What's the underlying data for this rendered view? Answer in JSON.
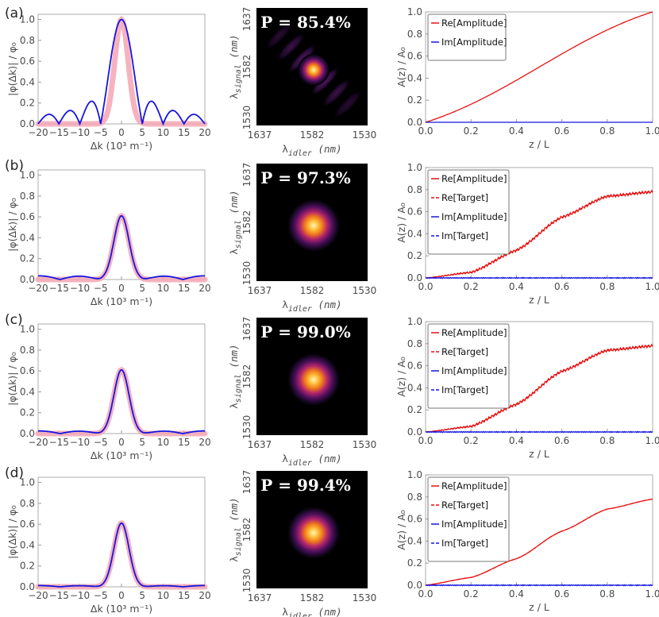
{
  "chart_data": [
    {
      "panel": "(a)",
      "label": "(a)",
      "type": "line",
      "xlabel": "Δk (10³ m⁻¹)",
      "ylabel": "|φ(Δk)| / φ₀",
      "xlim": [
        -20,
        20
      ],
      "ylim": [
        0,
        1.05
      ],
      "xticks": [
        -20,
        -15,
        -10,
        -5,
        0,
        5,
        10,
        15,
        20
      ],
      "xtick_labels": [
        "−20",
        "−15",
        "−10",
        "−5",
        "0",
        "5",
        "10",
        "15",
        "20"
      ],
      "yticks": [
        0.0,
        0.2,
        0.4,
        0.6,
        0.8,
        1.0
      ],
      "ytick_labels": [
        "0.0",
        "0.2",
        "0.4",
        "0.6",
        "0.8",
        "1.0"
      ],
      "series": [
        {
          "name": "target (pink band)",
          "color": "#f4a6b4",
          "values": "gaussian, peak 1.0, fwhm ≈ 3.8"
        },
        {
          "name": "phi",
          "color": "#1515e0",
          "values": "sinc, peak 1.0, zeros every 5, side lobes 0.22"
        }
      ],
      "jsa": {
        "purity_label": "P = 85.4%",
        "xlabel_main": "λ",
        "xlabel_sub": "idler",
        "xlabel_unit": " (nm)",
        "ylabel_main": "λ",
        "ylabel_sub": "signal",
        "ylabel_unit": " (nm)",
        "xtick_labels": [
          "1637",
          "1582",
          "1530"
        ],
        "ytick_labels": [
          "1637",
          "1582",
          "1530"
        ],
        "side_lobes": true
      },
      "amplitude": {
        "type": "line",
        "xlabel": "z / L",
        "ylabel": "A(z) / A₀",
        "xlim": [
          0,
          1
        ],
        "ylim": [
          0,
          1.0
        ],
        "xticks": [
          0.0,
          0.2,
          0.4,
          0.6,
          0.8,
          1.0
        ],
        "xtick_labels": [
          "0.0",
          "0.2",
          "0.4",
          "0.6",
          "0.8",
          "1.0"
        ],
        "yticks": [
          0.0,
          0.2,
          0.4,
          0.6,
          0.8,
          1.0
        ],
        "ytick_labels": [
          "0.0",
          "0.2",
          "0.4",
          "0.6",
          "0.8",
          "1.0"
        ],
        "legend": [
          "Re[Amplitude]",
          "Im[Amplitude]"
        ],
        "series": [
          {
            "name": "Re[Amplitude]",
            "color": "#e81010",
            "dash": false,
            "x": [
              0,
              1
            ],
            "y": [
              0,
              1.0
            ]
          },
          {
            "name": "Im[Amplitude]",
            "color": "#1515e0",
            "dash": false,
            "x": [
              0,
              1
            ],
            "y": [
              0,
              0
            ]
          }
        ]
      }
    },
    {
      "panel": "(b)",
      "label": "(b)",
      "type": "line",
      "xlabel": "Δk (10³ m⁻¹)",
      "ylabel": "|φ(Δk)| / φ₀",
      "xlim": [
        -20,
        20
      ],
      "ylim": [
        0,
        1.05
      ],
      "xticks": [
        -20,
        -15,
        -10,
        -5,
        0,
        5,
        10,
        15,
        20
      ],
      "xtick_labels": [
        "−20",
        "−15",
        "−10",
        "−5",
        "0",
        "5",
        "10",
        "15",
        "20"
      ],
      "yticks": [
        0.0,
        0.2,
        0.4,
        0.6,
        0.8,
        1.0
      ],
      "ytick_labels": [
        "0.0",
        "0.2",
        "0.4",
        "0.6",
        "0.8",
        "1.0"
      ],
      "series": [
        {
          "name": "target (pink band)",
          "color": "#f4a6b4",
          "values": "gaussian, peak 0.61"
        },
        {
          "name": "phi",
          "color": "#1515e0",
          "values": "gaussian, peak 0.61, ripple 0.035"
        }
      ],
      "jsa": {
        "purity_label": "P = 97.3%",
        "xlabel_main": "λ",
        "xlabel_sub": "idler",
        "xlabel_unit": " (nm)",
        "ylabel_main": "λ",
        "ylabel_sub": "signal",
        "ylabel_unit": " (nm)",
        "xtick_labels": [
          "1637",
          "1582",
          "1530"
        ],
        "ytick_labels": [
          "1637",
          "1582",
          "1530"
        ],
        "side_lobes": false
      },
      "amplitude": {
        "type": "line",
        "xlabel": "z / L",
        "ylabel": "A(z) / A₀",
        "xlim": [
          0,
          1
        ],
        "ylim": [
          0,
          1.0
        ],
        "xticks": [
          0.0,
          0.2,
          0.4,
          0.6,
          0.8,
          1.0
        ],
        "xtick_labels": [
          "0.0",
          "0.2",
          "0.4",
          "0.6",
          "0.8",
          "1.0"
        ],
        "yticks": [
          0.0,
          0.2,
          0.4,
          0.6,
          0.8,
          1.0
        ],
        "ytick_labels": [
          "0.0",
          "0.2",
          "0.4",
          "0.6",
          "0.8",
          "1.0"
        ],
        "legend": [
          "Re[Amplitude]",
          "Re[Target]",
          "Im[Amplitude]",
          "Im[Target]"
        ],
        "series": [
          {
            "name": "Re[Amplitude]",
            "color": "#e81010",
            "dash": false,
            "x": [
              0,
              0.2,
              0.4,
              0.6,
              0.8,
              1.0
            ],
            "y": [
              0,
              0.05,
              0.25,
              0.55,
              0.74,
              0.78
            ],
            "jagged": true
          },
          {
            "name": "Re[Target]",
            "color": "#e81010",
            "dash": true,
            "x": [
              0,
              0.2,
              0.4,
              0.6,
              0.8,
              1.0
            ],
            "y": [
              0,
              0.05,
              0.25,
              0.55,
              0.74,
              0.78
            ]
          },
          {
            "name": "Im[Amplitude]",
            "color": "#1515e0",
            "dash": false,
            "x": [
              0,
              1
            ],
            "y": [
              0,
              0
            ],
            "noisy": true
          },
          {
            "name": "Im[Target]",
            "color": "#1515e0",
            "dash": true,
            "x": [
              0,
              1
            ],
            "y": [
              0,
              0
            ]
          }
        ]
      }
    },
    {
      "panel": "(c)",
      "label": "(c)",
      "type": "line",
      "xlabel": "Δk (10³ m⁻¹)",
      "ylabel": "|φ(Δk)| / φ₀",
      "xlim": [
        -20,
        20
      ],
      "ylim": [
        0,
        1.05
      ],
      "xticks": [
        -20,
        -15,
        -10,
        -5,
        0,
        5,
        10,
        15,
        20
      ],
      "xtick_labels": [
        "−20",
        "−15",
        "−10",
        "−5",
        "0",
        "5",
        "10",
        "15",
        "20"
      ],
      "yticks": [
        0.0,
        0.2,
        0.4,
        0.6,
        0.8,
        1.0
      ],
      "ytick_labels": [
        "0.0",
        "0.2",
        "0.4",
        "0.6",
        "0.8",
        "1.0"
      ],
      "series": [
        {
          "name": "target (pink band)",
          "color": "#f4a6b4",
          "values": "gaussian, peak 0.61"
        },
        {
          "name": "phi",
          "color": "#1515e0",
          "values": "gaussian, peak 0.61, ripple 0.025"
        }
      ],
      "jsa": {
        "purity_label": "P = 99.0%",
        "xlabel_main": "λ",
        "xlabel_sub": "idler",
        "xlabel_unit": " (nm)",
        "ylabel_main": "λ",
        "ylabel_sub": "signal",
        "ylabel_unit": " (nm)",
        "xtick_labels": [
          "1637",
          "1582",
          "1530"
        ],
        "ytick_labels": [
          "1637",
          "1582",
          "1530"
        ],
        "side_lobes": false
      },
      "amplitude": {
        "type": "line",
        "xlabel": "z / L",
        "ylabel": "A(z) / A₀",
        "xlim": [
          0,
          1
        ],
        "ylim": [
          0,
          1.0
        ],
        "xticks": [
          0.0,
          0.2,
          0.4,
          0.6,
          0.8,
          1.0
        ],
        "xtick_labels": [
          "0.0",
          "0.2",
          "0.4",
          "0.6",
          "0.8",
          "1.0"
        ],
        "yticks": [
          0.0,
          0.2,
          0.4,
          0.6,
          0.8,
          1.0
        ],
        "ytick_labels": [
          "0.0",
          "0.2",
          "0.4",
          "0.6",
          "0.8",
          "1.0"
        ],
        "legend": [
          "Re[Amplitude]",
          "Re[Target]",
          "Im[Amplitude]",
          "Im[Target]"
        ],
        "series": [
          {
            "name": "Re[Amplitude]",
            "color": "#e81010",
            "dash": false,
            "x": [
              0,
              0.2,
              0.4,
              0.6,
              0.8,
              1.0
            ],
            "y": [
              0,
              0.05,
              0.25,
              0.55,
              0.74,
              0.78
            ],
            "jagged": true
          },
          {
            "name": "Re[Target]",
            "color": "#e81010",
            "dash": true,
            "x": [
              0,
              0.2,
              0.4,
              0.6,
              0.8,
              1.0
            ],
            "y": [
              0,
              0.05,
              0.25,
              0.55,
              0.74,
              0.78
            ]
          },
          {
            "name": "Im[Amplitude]",
            "color": "#1515e0",
            "dash": false,
            "x": [
              0,
              1
            ],
            "y": [
              0,
              0
            ],
            "noisy": true
          },
          {
            "name": "Im[Target]",
            "color": "#1515e0",
            "dash": true,
            "x": [
              0,
              1
            ],
            "y": [
              0,
              0
            ]
          }
        ]
      }
    },
    {
      "panel": "(d)",
      "label": "(d)",
      "type": "line",
      "xlabel": "Δk (10³ m⁻¹)",
      "ylabel": "|φ(Δk)| / φ₀",
      "xlim": [
        -20,
        20
      ],
      "ylim": [
        0,
        1.05
      ],
      "xticks": [
        -20,
        -15,
        -10,
        -5,
        0,
        5,
        10,
        15,
        20
      ],
      "xtick_labels": [
        "−20",
        "−15",
        "−10",
        "−5",
        "0",
        "5",
        "10",
        "15",
        "20"
      ],
      "yticks": [
        0.0,
        0.2,
        0.4,
        0.6,
        0.8,
        1.0
      ],
      "ytick_labels": [
        "0.0",
        "0.2",
        "0.4",
        "0.6",
        "0.8",
        "1.0"
      ],
      "series": [
        {
          "name": "target (pink band)",
          "color": "#f4a6b4",
          "values": "gaussian, peak 0.61"
        },
        {
          "name": "phi",
          "color": "#1515e0",
          "values": "gaussian, peak 0.61, ripple 0.01"
        }
      ],
      "jsa": {
        "purity_label": "P = 99.4%",
        "xlabel_main": "λ",
        "xlabel_sub": "idler",
        "xlabel_unit": " (nm)",
        "ylabel_main": "λ",
        "ylabel_sub": "signal",
        "ylabel_unit": " (nm)",
        "xtick_labels": [
          "1637",
          "1582",
          "1530"
        ],
        "ytick_labels": [
          "1637",
          "1582",
          "1530"
        ],
        "side_lobes": false
      },
      "amplitude": {
        "type": "line",
        "xlabel": "z / L",
        "ylabel": "A(z) / A₀",
        "xlim": [
          0,
          1
        ],
        "ylim": [
          0,
          1.0
        ],
        "xticks": [
          0.0,
          0.2,
          0.4,
          0.6,
          0.8,
          1.0
        ],
        "xtick_labels": [
          "0.0",
          "0.2",
          "0.4",
          "0.6",
          "0.8",
          "1.0"
        ],
        "yticks": [
          0.0,
          0.2,
          0.4,
          0.6,
          0.8,
          1.0
        ],
        "ytick_labels": [
          "0.0",
          "0.2",
          "0.4",
          "0.6",
          "0.8",
          "1.0"
        ],
        "legend": [
          "Re[Amplitude]",
          "Re[Target]",
          "Im[Amplitude]",
          "Im[Target]"
        ],
        "series": [
          {
            "name": "Re[Amplitude]",
            "color": "#e81010",
            "dash": false,
            "x": [
              0,
              0.2,
              0.4,
              0.6,
              0.8,
              1.0
            ],
            "y": [
              0,
              0.07,
              0.24,
              0.49,
              0.69,
              0.78
            ]
          },
          {
            "name": "Re[Target]",
            "color": "#e81010",
            "dash": true,
            "x": [
              0,
              0.2,
              0.4,
              0.6,
              0.8,
              1.0
            ],
            "y": [
              0,
              0.07,
              0.24,
              0.49,
              0.69,
              0.78
            ]
          },
          {
            "name": "Im[Amplitude]",
            "color": "#1515e0",
            "dash": false,
            "x": [
              0,
              1
            ],
            "y": [
              0,
              0
            ],
            "noisy": true
          },
          {
            "name": "Im[Target]",
            "color": "#1515e0",
            "dash": true,
            "x": [
              0,
              1
            ],
            "y": [
              0,
              0
            ]
          }
        ]
      }
    }
  ]
}
